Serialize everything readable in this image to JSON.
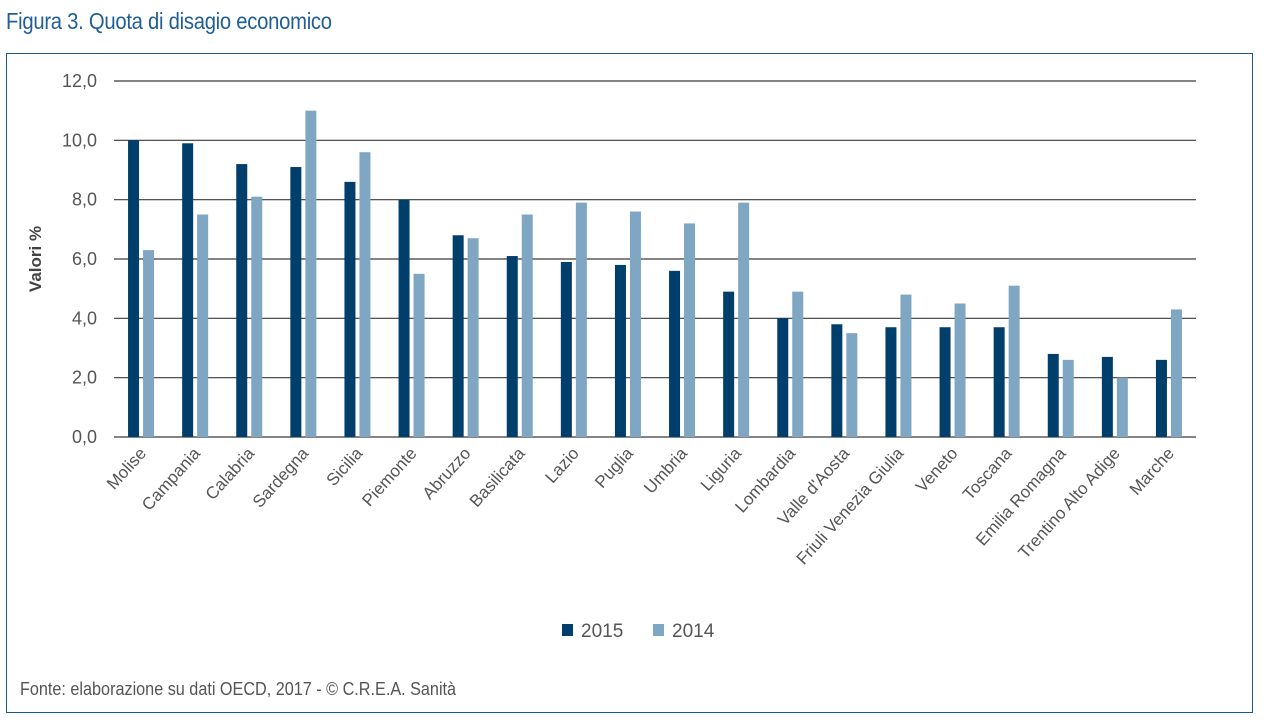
{
  "figure_title": "Figura 3. Quota di disagio economico",
  "source": "Fonte: elaborazione su dati OECD, 2017 - © C.R.E.A. Sanità",
  "colors": {
    "s2015": "#003e6b",
    "s2014": "#7fa6c2",
    "frame": "#1c5a86",
    "title": "#1f5e96"
  },
  "chart_data": {
    "type": "bar",
    "title": "",
    "xlabel": "",
    "ylabel": "Valori %",
    "ylim": [
      0,
      12
    ],
    "yticks": [
      "0,0",
      "2,0",
      "4,0",
      "6,0",
      "8,0",
      "10,0",
      "12,0"
    ],
    "grid": true,
    "legend": "bottom-center",
    "categories": [
      "Molise",
      "Campania",
      "Calabria",
      "Sardegna",
      "Sicilia",
      "Piemonte",
      "Abruzzo",
      "Basilicata",
      "Lazio",
      "Puglia",
      "Umbria",
      "Liguria",
      "Lombardia",
      "Valle d'Aosta",
      "Friuli Venezia Giulia",
      "Veneto",
      "Toscana",
      "Emilia Romagna",
      "Trentino Alto Adige",
      "Marche"
    ],
    "series": [
      {
        "name": "2015",
        "values": [
          10.0,
          9.9,
          9.2,
          9.1,
          8.6,
          8.0,
          6.8,
          6.1,
          5.9,
          5.8,
          5.6,
          4.9,
          4.0,
          3.8,
          3.7,
          3.7,
          3.7,
          2.8,
          2.7,
          2.6
        ]
      },
      {
        "name": "2014",
        "values": [
          6.3,
          7.5,
          8.1,
          11.0,
          9.6,
          5.5,
          6.7,
          7.5,
          7.9,
          7.6,
          7.2,
          7.9,
          4.9,
          3.5,
          4.8,
          4.5,
          5.1,
          2.6,
          2.0,
          4.3
        ]
      }
    ]
  }
}
